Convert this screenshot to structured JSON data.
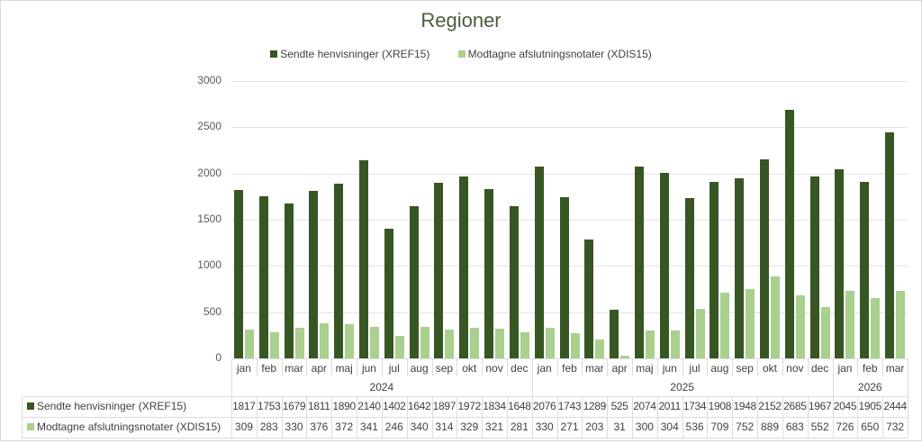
{
  "chart_data": {
    "type": "bar",
    "title": "Regioner",
    "xlabel": "",
    "ylabel": "",
    "ylim": [
      0,
      3000
    ],
    "yticks": [
      0,
      500,
      1000,
      1500,
      2000,
      2500,
      3000
    ],
    "grid": true,
    "legend_position": "top",
    "categories": [
      "jan",
      "feb",
      "mar",
      "apr",
      "maj",
      "jun",
      "jul",
      "aug",
      "sep",
      "okt",
      "nov",
      "dec",
      "jan",
      "feb",
      "mar",
      "apr",
      "maj",
      "jun",
      "jul",
      "aug",
      "sep",
      "okt",
      "nov",
      "dec",
      "jan",
      "feb",
      "mar"
    ],
    "year_groups": [
      {
        "label": "2024",
        "count": 12
      },
      {
        "label": "2025",
        "count": 12
      },
      {
        "label": "2026",
        "count": 3
      }
    ],
    "series": [
      {
        "name": "Sendte henvisninger (XREF15)",
        "color": "#375623",
        "values": [
          1817,
          1753,
          1679,
          1811,
          1890,
          2140,
          1402,
          1642,
          1897,
          1972,
          1834,
          1648,
          2076,
          1743,
          1289,
          525,
          2074,
          2011,
          1734,
          1908,
          1948,
          2152,
          2685,
          1967,
          2045,
          1905,
          2444
        ]
      },
      {
        "name": "Modtagne afslutningsnotater (XDIS15)",
        "color": "#a9d08e",
        "values": [
          309,
          283,
          330,
          376,
          372,
          341,
          246,
          340,
          314,
          329,
          321,
          281,
          330,
          271,
          203,
          31,
          300,
          304,
          536,
          709,
          752,
          889,
          683,
          552,
          726,
          650,
          732
        ]
      }
    ]
  }
}
